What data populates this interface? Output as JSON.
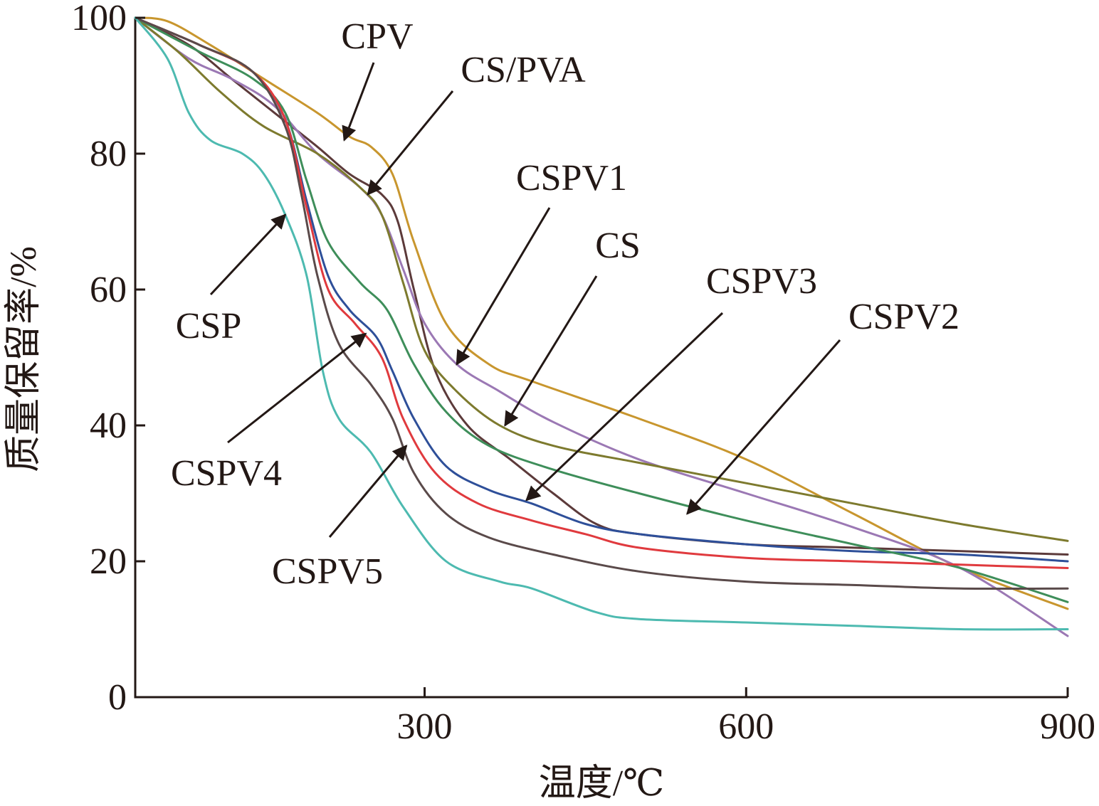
{
  "chart_data": {
    "type": "line",
    "title": "",
    "xlabel": "温度/℃",
    "ylabel": "质量保留率/%",
    "xlim": [
      30,
      900
    ],
    "ylim": [
      0,
      100
    ],
    "xticks": [
      300,
      600,
      900
    ],
    "yticks": [
      0,
      20,
      40,
      60,
      80,
      100
    ],
    "grid": false,
    "legend": "none (series labelled by arrows)",
    "series": [
      {
        "name": "CPV",
        "color": "#C8962E",
        "points": [
          [
            30,
            100
          ],
          [
            60,
            99.5
          ],
          [
            100,
            96
          ],
          [
            150,
            91
          ],
          [
            200,
            86
          ],
          [
            230,
            82.5
          ],
          [
            250,
            81
          ],
          [
            270,
            77
          ],
          [
            290,
            67
          ],
          [
            320,
            55
          ],
          [
            360,
            49
          ],
          [
            400,
            46.5
          ],
          [
            500,
            41
          ],
          [
            600,
            35
          ],
          [
            700,
            27
          ],
          [
            800,
            19
          ],
          [
            900,
            13
          ]
        ]
      },
      {
        "name": "CS/PVA",
        "color": "#5C3A3A",
        "points": [
          [
            30,
            100
          ],
          [
            80,
            96
          ],
          [
            120,
            91
          ],
          [
            160,
            86
          ],
          [
            200,
            81
          ],
          [
            230,
            77
          ],
          [
            260,
            74
          ],
          [
            275,
            70
          ],
          [
            290,
            60
          ],
          [
            310,
            48
          ],
          [
            340,
            40
          ],
          [
            380,
            35
          ],
          [
            420,
            30
          ],
          [
            460,
            25.5
          ],
          [
            500,
            24
          ],
          [
            600,
            22.5
          ],
          [
            700,
            22
          ],
          [
            900,
            21
          ]
        ]
      },
      {
        "name": "CSPV1",
        "color": "#9B78B4",
        "points": [
          [
            30,
            100
          ],
          [
            80,
            94
          ],
          [
            120,
            91
          ],
          [
            160,
            87
          ],
          [
            200,
            80
          ],
          [
            240,
            75
          ],
          [
            260,
            71
          ],
          [
            280,
            63
          ],
          [
            300,
            55
          ],
          [
            330,
            49
          ],
          [
            370,
            45
          ],
          [
            420,
            40.5
          ],
          [
            500,
            35
          ],
          [
            600,
            30
          ],
          [
            700,
            25
          ],
          [
            800,
            19
          ],
          [
            900,
            9
          ]
        ]
      },
      {
        "name": "CS",
        "color": "#7D7A2E",
        "points": [
          [
            30,
            100
          ],
          [
            70,
            95
          ],
          [
            110,
            89
          ],
          [
            150,
            84
          ],
          [
            200,
            80
          ],
          [
            240,
            75
          ],
          [
            260,
            71
          ],
          [
            280,
            61
          ],
          [
            300,
            51
          ],
          [
            330,
            45
          ],
          [
            370,
            40
          ],
          [
            420,
            37
          ],
          [
            500,
            34.5
          ],
          [
            600,
            31.5
          ],
          [
            700,
            28.5
          ],
          [
            800,
            25.5
          ],
          [
            900,
            23
          ]
        ]
      },
      {
        "name": "CSPV3",
        "color": "#2E4F99",
        "points": [
          [
            30,
            100
          ],
          [
            90,
            96
          ],
          [
            140,
            92
          ],
          [
            170,
            85
          ],
          [
            190,
            73
          ],
          [
            210,
            62
          ],
          [
            230,
            57
          ],
          [
            255,
            53
          ],
          [
            270,
            48
          ],
          [
            290,
            41
          ],
          [
            320,
            34
          ],
          [
            360,
            30.5
          ],
          [
            400,
            28.5
          ],
          [
            450,
            25.5
          ],
          [
            500,
            24
          ],
          [
            600,
            22.5
          ],
          [
            700,
            21.5
          ],
          [
            800,
            21
          ],
          [
            900,
            20
          ]
        ]
      },
      {
        "name": "CSPV2",
        "color": "#3E8E5A",
        "points": [
          [
            30,
            100
          ],
          [
            90,
            95
          ],
          [
            140,
            91
          ],
          [
            170,
            86
          ],
          [
            190,
            76
          ],
          [
            210,
            67
          ],
          [
            240,
            61
          ],
          [
            265,
            57
          ],
          [
            290,
            49
          ],
          [
            320,
            42
          ],
          [
            360,
            37
          ],
          [
            420,
            33.5
          ],
          [
            500,
            30
          ],
          [
            600,
            26
          ],
          [
            700,
            22.5
          ],
          [
            800,
            19
          ],
          [
            900,
            14
          ]
        ]
      },
      {
        "name": "CSPV4",
        "color": "#E03A3E",
        "points": [
          [
            30,
            100
          ],
          [
            90,
            96
          ],
          [
            140,
            92
          ],
          [
            170,
            85
          ],
          [
            190,
            72
          ],
          [
            210,
            60
          ],
          [
            235,
            55
          ],
          [
            260,
            50
          ],
          [
            280,
            41
          ],
          [
            310,
            33
          ],
          [
            350,
            28.5
          ],
          [
            400,
            26
          ],
          [
            450,
            24
          ],
          [
            500,
            22
          ],
          [
            600,
            20.5
          ],
          [
            700,
            20
          ],
          [
            800,
            19.5
          ],
          [
            900,
            19
          ]
        ]
      },
      {
        "name": "CSPV5",
        "color": "#5A4A4A",
        "points": [
          [
            30,
            100
          ],
          [
            90,
            96
          ],
          [
            140,
            92
          ],
          [
            170,
            84
          ],
          [
            185,
            74
          ],
          [
            200,
            62
          ],
          [
            220,
            52
          ],
          [
            250,
            46
          ],
          [
            270,
            41
          ],
          [
            290,
            33
          ],
          [
            320,
            27
          ],
          [
            360,
            23.5
          ],
          [
            420,
            21
          ],
          [
            500,
            18.5
          ],
          [
            600,
            17
          ],
          [
            700,
            16.5
          ],
          [
            800,
            16
          ],
          [
            900,
            16
          ]
        ]
      },
      {
        "name": "CSP",
        "color": "#4DBAB0",
        "points": [
          [
            30,
            100
          ],
          [
            60,
            94
          ],
          [
            80,
            86
          ],
          [
            100,
            82
          ],
          [
            130,
            80
          ],
          [
            150,
            77
          ],
          [
            170,
            71
          ],
          [
            190,
            62
          ],
          [
            205,
            48
          ],
          [
            220,
            41
          ],
          [
            250,
            36
          ],
          [
            280,
            28
          ],
          [
            320,
            20
          ],
          [
            370,
            17
          ],
          [
            400,
            16
          ],
          [
            460,
            12.5
          ],
          [
            500,
            11.5
          ],
          [
            600,
            11
          ],
          [
            700,
            10.5
          ],
          [
            800,
            10
          ],
          [
            900,
            10
          ]
        ]
      }
    ],
    "annotations": [
      {
        "label": "CPV",
        "target": [
          225,
          82
        ]
      },
      {
        "label": "CS/PVA",
        "target": [
          247,
          74
        ]
      },
      {
        "label": "CSPV1",
        "target": [
          330,
          49
        ]
      },
      {
        "label": "CS",
        "target": [
          375,
          40
        ]
      },
      {
        "label": "CSPV3",
        "target": [
          395,
          29
        ]
      },
      {
        "label": "CSPV2",
        "target": [
          545,
          27
        ]
      },
      {
        "label": "CSP",
        "target": [
          170,
          71
        ]
      },
      {
        "label": "CSPV4",
        "target": [
          245,
          53.5
        ]
      },
      {
        "label": "CSPV5",
        "target": [
          283,
          37
        ]
      }
    ]
  }
}
